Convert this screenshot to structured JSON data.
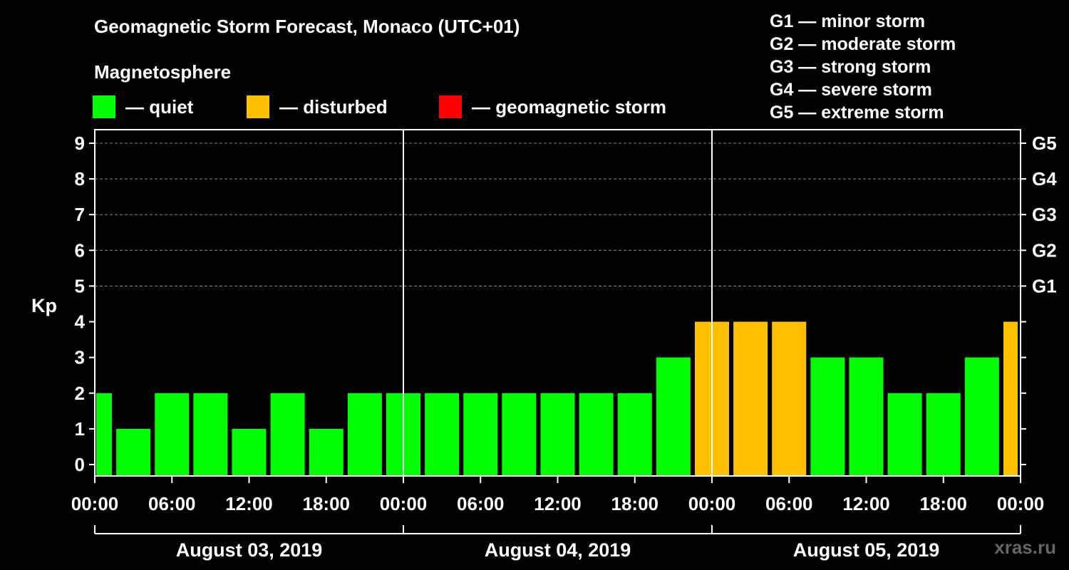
{
  "title": "Geomagnetic Storm Forecast, Monaco (UTC+01)",
  "subtitle": "Magnetosphere",
  "legend": [
    {
      "label": "— quiet",
      "color": "#00ff00"
    },
    {
      "label": "— disturbed",
      "color": "#ffc000"
    },
    {
      "label": "— geomagnetic storm",
      "color": "#ff0000"
    }
  ],
  "g_legend": [
    "G1 — minor storm",
    "G2 — moderate storm",
    "G3 — strong storm",
    "G4 — severe storm",
    "G5 — extreme storm"
  ],
  "watermark": "xras.ru",
  "chart_data": {
    "type": "bar",
    "ylabel": "Kp",
    "ylim": [
      0,
      9
    ],
    "y_ticks": [
      "0",
      "1",
      "2",
      "3",
      "4",
      "5",
      "6",
      "7",
      "8",
      "9"
    ],
    "right_axis_labels": [
      {
        "value": 5,
        "label": "G1"
      },
      {
        "value": 6,
        "label": "G2"
      },
      {
        "value": 7,
        "label": "G3"
      },
      {
        "value": 8,
        "label": "G4"
      },
      {
        "value": 9,
        "label": "G5"
      }
    ],
    "x_tick_labels": [
      "00:00",
      "06:00",
      "12:00",
      "18:00",
      "00:00",
      "06:00",
      "12:00",
      "18:00",
      "00:00",
      "06:00",
      "12:00",
      "18:00",
      "00:00"
    ],
    "days": [
      "August 03, 2019",
      "August 04, 2019",
      "August 05, 2019"
    ],
    "start_time": "2019-08-03 00:00",
    "values": [
      2,
      1,
      2,
      2,
      1,
      2,
      1,
      2,
      2,
      2,
      2,
      2,
      2,
      2,
      2,
      3,
      4,
      4,
      4,
      3,
      3,
      2,
      2,
      3,
      4
    ],
    "bar_status": [
      "quiet",
      "quiet",
      "quiet",
      "quiet",
      "quiet",
      "quiet",
      "quiet",
      "quiet",
      "quiet",
      "quiet",
      "quiet",
      "quiet",
      "quiet",
      "quiet",
      "quiet",
      "quiet",
      "disturbed",
      "disturbed",
      "disturbed",
      "quiet",
      "quiet",
      "quiet",
      "quiet",
      "quiet",
      "disturbed"
    ],
    "colors": {
      "quiet": "#00ff00",
      "disturbed": "#ffc000",
      "storm": "#ff0000"
    },
    "grid_color": "#888888"
  }
}
